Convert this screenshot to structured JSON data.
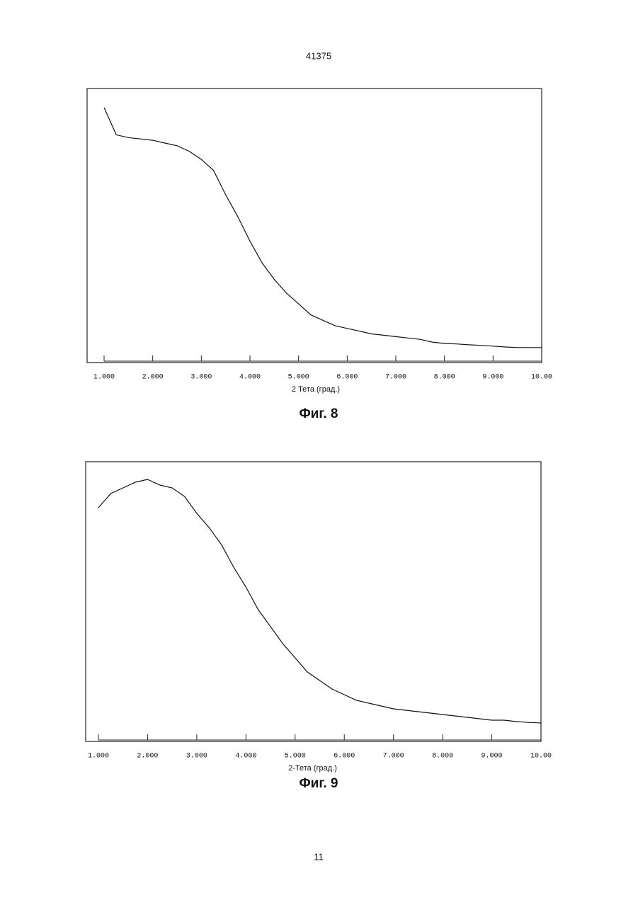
{
  "header": {
    "number": "41375"
  },
  "footer": {
    "page": "11"
  },
  "chart_data": [
    {
      "type": "line",
      "caption": "Фиг. 8",
      "x_label": "2 Тета (град.)",
      "color": "#111111",
      "x": [
        1,
        1.25,
        1.5,
        1.75,
        2,
        2.25,
        2.5,
        2.75,
        3,
        3.25,
        3.5,
        3.75,
        4,
        4.25,
        4.5,
        4.75,
        5,
        5.25,
        5.5,
        5.75,
        6,
        6.25,
        6.5,
        6.75,
        7,
        7.25,
        7.5,
        7.75,
        8,
        8.25,
        8.5,
        8.75,
        9,
        9.25,
        9.5,
        9.75,
        10
      ],
      "values": [
        93,
        83,
        82,
        81.5,
        81,
        80,
        79,
        77,
        74,
        70,
        61,
        53,
        44,
        36,
        30,
        25,
        21,
        17,
        15,
        13,
        12,
        11,
        10,
        9.5,
        9,
        8.5,
        8,
        7,
        6.5,
        6.3,
        6,
        5.8,
        5.5,
        5.2,
        5,
        5,
        5
      ],
      "xlim": [
        1,
        10
      ],
      "ylim": [
        0,
        100
      ],
      "xticks": [
        {
          "value": 1,
          "label": "1.000"
        },
        {
          "value": 2,
          "label": "2.000"
        },
        {
          "value": 3,
          "label": "3.000"
        },
        {
          "value": 4,
          "label": "4.000"
        },
        {
          "value": 5,
          "label": "5.000"
        },
        {
          "value": 6,
          "label": "6.000"
        },
        {
          "value": 7,
          "label": "7.000"
        },
        {
          "value": 8,
          "label": "8.000"
        },
        {
          "value": 9,
          "label": "9.000"
        },
        {
          "value": 10,
          "label": "10.00"
        }
      ]
    },
    {
      "type": "line",
      "caption": "Фиг. 9",
      "x_label": "2-Тета (град.)",
      "color": "#111111",
      "x": [
        1,
        1.25,
        1.5,
        1.75,
        2,
        2.25,
        2.5,
        2.75,
        3,
        3.25,
        3.5,
        3.75,
        4,
        4.25,
        4.5,
        4.75,
        5,
        5.25,
        5.5,
        5.75,
        6,
        6.25,
        6.5,
        6.75,
        7,
        7.25,
        7.5,
        7.75,
        8,
        8.25,
        8.5,
        8.75,
        9,
        9.25,
        9.5,
        9.75,
        10
      ],
      "values": [
        82,
        87,
        89,
        91,
        92,
        90,
        89,
        86,
        80,
        75,
        69,
        61,
        54,
        46,
        40,
        34,
        29,
        24,
        21,
        18,
        16,
        14,
        13,
        12,
        11,
        10.5,
        10,
        9.5,
        9,
        8.5,
        8,
        7.5,
        7,
        7,
        6.5,
        6.2,
        6
      ],
      "xlim": [
        1,
        10
      ],
      "ylim": [
        0,
        100
      ],
      "xticks": [
        {
          "value": 1,
          "label": "1.000"
        },
        {
          "value": 2,
          "label": "2.000"
        },
        {
          "value": 3,
          "label": "3.000"
        },
        {
          "value": 4,
          "label": "4.000"
        },
        {
          "value": 5,
          "label": "5.000"
        },
        {
          "value": 6,
          "label": "6.000"
        },
        {
          "value": 7,
          "label": "7.000"
        },
        {
          "value": 8,
          "label": "8.000"
        },
        {
          "value": 9,
          "label": "9.000"
        },
        {
          "value": 10,
          "label": "10.00"
        }
      ]
    }
  ]
}
